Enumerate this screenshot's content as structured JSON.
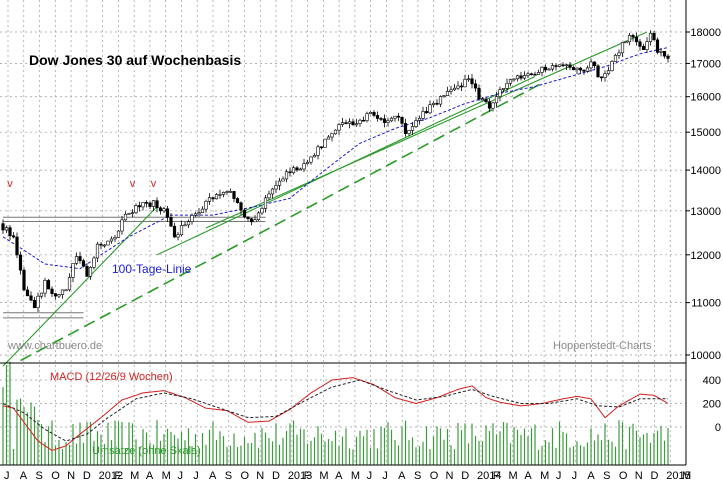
{
  "chart_data": [
    {
      "type": "candlestick",
      "title": "Dow Jones 30 auf Wochenbasis",
      "source_label": "www.chartbuero.de",
      "credit_label": "Hoppenstedt-Charts",
      "x_labels": [
        "J",
        "A",
        "S",
        "O",
        "N",
        "D",
        "2012",
        "F",
        "M",
        "A",
        "M",
        "J",
        "J",
        "A",
        "S",
        "O",
        "N",
        "D",
        "2013",
        "F",
        "M",
        "A",
        "M",
        "J",
        "J",
        "A",
        "S",
        "O",
        "N",
        "D",
        "2014",
        "F",
        "M",
        "A",
        "M",
        "J",
        "J",
        "A",
        "S",
        "O",
        "N",
        "D",
        "2015",
        "M"
      ],
      "yscale": "log",
      "ylim": [
        9800,
        18600
      ],
      "yticks": [
        10000,
        11000,
        12000,
        13000,
        14000,
        15000,
        16000,
        17000,
        18000
      ],
      "ytick_labels": [
        "10000",
        "11000",
        "12000",
        "13000",
        "14000",
        "15000",
        "16000",
        "17000",
        "18000"
      ],
      "annotations": {
        "ma_label": "100-Tage-Linie",
        "peak_marks": [
          "v",
          "v",
          "v"
        ]
      },
      "anchors": [
        {
          "t": 0,
          "v": 12700
        },
        {
          "t": 4,
          "v": 12400
        },
        {
          "t": 7,
          "v": 11300
        },
        {
          "t": 10,
          "v": 10900
        },
        {
          "t": 13,
          "v": 11400
        },
        {
          "t": 16,
          "v": 11100
        },
        {
          "t": 19,
          "v": 11300
        },
        {
          "t": 22,
          "v": 12000
        },
        {
          "t": 25,
          "v": 11600
        },
        {
          "t": 28,
          "v": 12200
        },
        {
          "t": 32,
          "v": 12300
        },
        {
          "t": 36,
          "v": 12900
        },
        {
          "t": 40,
          "v": 13100
        },
        {
          "t": 44,
          "v": 13200
        },
        {
          "t": 47,
          "v": 13000
        },
        {
          "t": 50,
          "v": 12400
        },
        {
          "t": 54,
          "v": 12800
        },
        {
          "t": 58,
          "v": 13100
        },
        {
          "t": 62,
          "v": 13400
        },
        {
          "t": 66,
          "v": 13500
        },
        {
          "t": 69,
          "v": 13000
        },
        {
          "t": 72,
          "v": 12700
        },
        {
          "t": 75,
          "v": 13100
        },
        {
          "t": 78,
          "v": 13500
        },
        {
          "t": 82,
          "v": 13900
        },
        {
          "t": 86,
          "v": 14100
        },
        {
          "t": 90,
          "v": 14450
        },
        {
          "t": 94,
          "v": 14900
        },
        {
          "t": 98,
          "v": 15200
        },
        {
          "t": 101,
          "v": 15200
        },
        {
          "t": 104,
          "v": 15400
        },
        {
          "t": 107,
          "v": 15500
        },
        {
          "t": 110,
          "v": 15300
        },
        {
          "t": 113,
          "v": 15500
        },
        {
          "t": 116,
          "v": 15000
        },
        {
          "t": 119,
          "v": 15300
        },
        {
          "t": 123,
          "v": 15700
        },
        {
          "t": 127,
          "v": 16000
        },
        {
          "t": 131,
          "v": 16300
        },
        {
          "t": 134,
          "v": 16500
        },
        {
          "t": 137,
          "v": 16000
        },
        {
          "t": 140,
          "v": 15700
        },
        {
          "t": 143,
          "v": 16200
        },
        {
          "t": 147,
          "v": 16500
        },
        {
          "t": 151,
          "v": 16600
        },
        {
          "t": 155,
          "v": 16800
        },
        {
          "t": 159,
          "v": 17000
        },
        {
          "t": 163,
          "v": 16950
        },
        {
          "t": 166,
          "v": 16700
        },
        {
          "t": 169,
          "v": 17050
        },
        {
          "t": 172,
          "v": 16500
        },
        {
          "t": 175,
          "v": 17000
        },
        {
          "t": 178,
          "v": 17600
        },
        {
          "t": 181,
          "v": 17900
        },
        {
          "t": 184,
          "v": 17500
        },
        {
          "t": 186,
          "v": 17900
        },
        {
          "t": 188,
          "v": 17400
        },
        {
          "t": 190,
          "v": 17250
        }
      ],
      "moving_average": [
        {
          "t": 0,
          "v": 12400
        },
        {
          "t": 12,
          "v": 11800
        },
        {
          "t": 22,
          "v": 11700
        },
        {
          "t": 36,
          "v": 12400
        },
        {
          "t": 48,
          "v": 12900
        },
        {
          "t": 60,
          "v": 12900
        },
        {
          "t": 72,
          "v": 13100
        },
        {
          "t": 82,
          "v": 13300
        },
        {
          "t": 92,
          "v": 14000
        },
        {
          "t": 102,
          "v": 14700
        },
        {
          "t": 112,
          "v": 15100
        },
        {
          "t": 122,
          "v": 15400
        },
        {
          "t": 132,
          "v": 15800
        },
        {
          "t": 142,
          "v": 16100
        },
        {
          "t": 152,
          "v": 16300
        },
        {
          "t": 162,
          "v": 16600
        },
        {
          "t": 172,
          "v": 16900
        },
        {
          "t": 182,
          "v": 17300
        },
        {
          "t": 190,
          "v": 17500
        }
      ],
      "resistance_lines": [
        {
          "name": "upper-support-1",
          "from": {
            "t": 0,
            "v": 12850
          },
          "to": {
            "t": 75,
            "v": 12850
          }
        },
        {
          "name": "upper-support-2",
          "from": {
            "t": 0,
            "v": 12750
          },
          "to": {
            "t": 75,
            "v": 12750
          }
        },
        {
          "name": "lower-support-1",
          "from": {
            "t": 0,
            "v": 10800
          },
          "to": {
            "t": 23,
            "v": 10800
          }
        },
        {
          "name": "lower-support-2",
          "from": {
            "t": 0,
            "v": 10700
          },
          "to": {
            "t": 23,
            "v": 10700
          }
        }
      ],
      "trend_lines": [
        {
          "name": "trend-1",
          "style": "solid",
          "from": {
            "t": 0,
            "v": 9800
          },
          "to": {
            "t": 44,
            "v": 13100
          }
        },
        {
          "name": "trend-2",
          "style": "solid",
          "from": {
            "t": 44,
            "v": 12000
          },
          "to": {
            "t": 152,
            "v": 16600
          }
        },
        {
          "name": "trend-3",
          "style": "solid",
          "from": {
            "t": 58,
            "v": 12600
          },
          "to": {
            "t": 184,
            "v": 18000
          }
        },
        {
          "name": "trend-4",
          "style": "dashed",
          "from": {
            "t": 5,
            "v": 9900
          },
          "to": {
            "t": 154,
            "v": 16400
          }
        }
      ]
    },
    {
      "type": "line",
      "title": "MACD (12/26/9 Wochen)",
      "ylim": [
        -220,
        470
      ],
      "yticks": [
        0,
        200,
        400
      ],
      "ytick_labels": [
        "0",
        "200",
        "400"
      ],
      "series": [
        {
          "name": "MACD",
          "color": "#d62020",
          "points": [
            {
              "t": 0,
              "v": 180
            },
            {
              "t": 3,
              "v": 160
            },
            {
              "t": 6,
              "v": 40
            },
            {
              "t": 10,
              "v": -120
            },
            {
              "t": 14,
              "v": -200
            },
            {
              "t": 18,
              "v": -160
            },
            {
              "t": 22,
              "v": -60
            },
            {
              "t": 28,
              "v": 80
            },
            {
              "t": 34,
              "v": 230
            },
            {
              "t": 40,
              "v": 290
            },
            {
              "t": 46,
              "v": 310
            },
            {
              "t": 52,
              "v": 250
            },
            {
              "t": 58,
              "v": 160
            },
            {
              "t": 64,
              "v": 140
            },
            {
              "t": 70,
              "v": 40
            },
            {
              "t": 76,
              "v": 50
            },
            {
              "t": 82,
              "v": 150
            },
            {
              "t": 88,
              "v": 290
            },
            {
              "t": 94,
              "v": 400
            },
            {
              "t": 100,
              "v": 420
            },
            {
              "t": 106,
              "v": 360
            },
            {
              "t": 112,
              "v": 250
            },
            {
              "t": 118,
              "v": 200
            },
            {
              "t": 124,
              "v": 250
            },
            {
              "t": 130,
              "v": 320
            },
            {
              "t": 134,
              "v": 350
            },
            {
              "t": 138,
              "v": 250
            },
            {
              "t": 142,
              "v": 210
            },
            {
              "t": 148,
              "v": 180
            },
            {
              "t": 154,
              "v": 200
            },
            {
              "t": 160,
              "v": 240
            },
            {
              "t": 164,
              "v": 260
            },
            {
              "t": 168,
              "v": 240
            },
            {
              "t": 172,
              "v": 80
            },
            {
              "t": 176,
              "v": 180
            },
            {
              "t": 182,
              "v": 280
            },
            {
              "t": 186,
              "v": 270
            },
            {
              "t": 190,
              "v": 200
            }
          ]
        },
        {
          "name": "Signal",
          "color": "#222222",
          "points": [
            {
              "t": 0,
              "v": 200
            },
            {
              "t": 6,
              "v": 120
            },
            {
              "t": 12,
              "v": -20
            },
            {
              "t": 18,
              "v": -120
            },
            {
              "t": 24,
              "v": -60
            },
            {
              "t": 30,
              "v": 80
            },
            {
              "t": 38,
              "v": 240
            },
            {
              "t": 46,
              "v": 290
            },
            {
              "t": 54,
              "v": 240
            },
            {
              "t": 62,
              "v": 160
            },
            {
              "t": 70,
              "v": 80
            },
            {
              "t": 78,
              "v": 90
            },
            {
              "t": 86,
              "v": 220
            },
            {
              "t": 94,
              "v": 340
            },
            {
              "t": 102,
              "v": 400
            },
            {
              "t": 110,
              "v": 310
            },
            {
              "t": 118,
              "v": 230
            },
            {
              "t": 126,
              "v": 260
            },
            {
              "t": 134,
              "v": 320
            },
            {
              "t": 140,
              "v": 260
            },
            {
              "t": 148,
              "v": 200
            },
            {
              "t": 156,
              "v": 200
            },
            {
              "t": 164,
              "v": 240
            },
            {
              "t": 170,
              "v": 180
            },
            {
              "t": 176,
              "v": 170
            },
            {
              "t": 182,
              "v": 240
            },
            {
              "t": 190,
              "v": 240
            }
          ]
        }
      ]
    },
    {
      "type": "bar",
      "title": "Umsätze (ohne Skala)",
      "color": "#3f9a3f"
    }
  ],
  "colors": {
    "candle_up": "#ffffff",
    "candle_down": "#000000",
    "candle_outline": "#000000",
    "moving_average": "#1a1ad6",
    "trend": "#2a9a2a",
    "peak_marks": "#d62020",
    "grid": "#9a9a9a",
    "macd_label": "#d62020",
    "volume_label": "#2a9a2a"
  }
}
